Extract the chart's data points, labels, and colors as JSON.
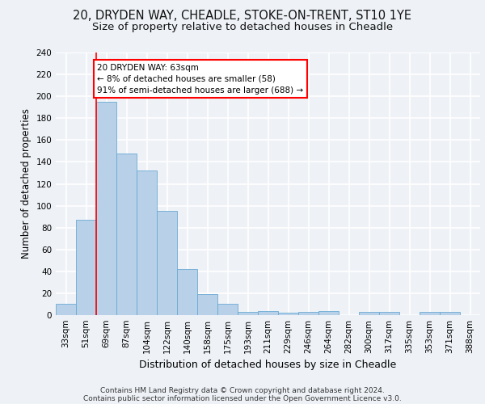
{
  "title1": "20, DRYDEN WAY, CHEADLE, STOKE-ON-TRENT, ST10 1YE",
  "title2": "Size of property relative to detached houses in Cheadle",
  "xlabel": "Distribution of detached houses by size in Cheadle",
  "ylabel": "Number of detached properties",
  "categories": [
    "33sqm",
    "51sqm",
    "69sqm",
    "87sqm",
    "104sqm",
    "122sqm",
    "140sqm",
    "158sqm",
    "175sqm",
    "193sqm",
    "211sqm",
    "229sqm",
    "246sqm",
    "264sqm",
    "282sqm",
    "300sqm",
    "317sqm",
    "335sqm",
    "353sqm",
    "371sqm",
    "388sqm"
  ],
  "values": [
    10,
    87,
    195,
    148,
    132,
    95,
    42,
    19,
    10,
    3,
    4,
    2,
    3,
    4,
    0,
    3,
    3,
    0,
    3,
    3,
    0
  ],
  "bar_color": "#b8d0e8",
  "bar_edge_color": "#6aaad4",
  "annotation_line1": "20 DRYDEN WAY: 63sqm",
  "annotation_line2": "← 8% of detached houses are smaller (58)",
  "annotation_line3": "91% of semi-detached houses are larger (688) →",
  "annotation_box_color": "white",
  "annotation_box_edgecolor": "red",
  "vline_x": 1.5,
  "vline_color": "red",
  "ylim": [
    0,
    240
  ],
  "yticks": [
    0,
    20,
    40,
    60,
    80,
    100,
    120,
    140,
    160,
    180,
    200,
    220,
    240
  ],
  "footer1": "Contains HM Land Registry data © Crown copyright and database right 2024.",
  "footer2": "Contains public sector information licensed under the Open Government Licence v3.0.",
  "bg_color": "#eef2f7",
  "plot_bg_color": "#eef2f7",
  "grid_color": "white",
  "title1_fontsize": 10.5,
  "title2_fontsize": 9.5,
  "tick_fontsize": 7.5,
  "xlabel_fontsize": 9,
  "ylabel_fontsize": 8.5,
  "footer_fontsize": 6.5
}
